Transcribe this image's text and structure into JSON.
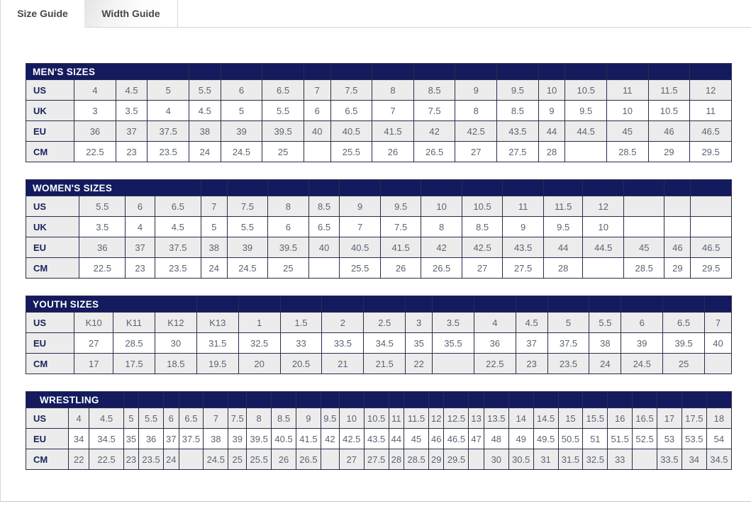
{
  "tabs": [
    {
      "label": "Size Guide",
      "active": true
    },
    {
      "label": "Width Guide",
      "active": false
    }
  ],
  "colors": {
    "header_navy": "#131b5e",
    "cell_border": "#2b2b4d",
    "value_text": "#5b6472",
    "label_text": "#16245c",
    "row_alt_background": "#ececec",
    "tab_text": "#474747"
  },
  "tables": [
    {
      "name": "mens-sizes-table",
      "title": "MEN'S SIZES",
      "title_colspan": 4,
      "rows": [
        {
          "label": "US",
          "values": [
            "4",
            "4.5",
            "5",
            "5.5",
            "6",
            "6.5",
            "7",
            "7.5",
            "8",
            "8.5",
            "9",
            "9.5",
            "10",
            "10.5",
            "11",
            "11.5",
            "12"
          ]
        },
        {
          "label": "UK",
          "values": [
            "3",
            "3.5",
            "4",
            "4.5",
            "5",
            "5.5",
            "6",
            "6.5",
            "7",
            "7.5",
            "8",
            "8.5",
            "9",
            "9.5",
            "10",
            "10.5",
            "11"
          ]
        },
        {
          "label": "EU",
          "values": [
            "36",
            "37",
            "37.5",
            "38",
            "39",
            "39.5",
            "40",
            "40.5",
            "41.5",
            "42",
            "42.5",
            "43.5",
            "44",
            "44.5",
            "45",
            "46",
            "46.5"
          ]
        },
        {
          "label": "CM",
          "values": [
            "22.5",
            "23",
            "23.5",
            "24",
            "24.5",
            "25",
            "",
            "25.5",
            "26",
            "26.5",
            "27",
            "27.5",
            "28",
            "",
            "28.5",
            "29",
            "29.5"
          ]
        }
      ]
    },
    {
      "name": "womens-sizes-table",
      "title": "WOMEN'S SIZES",
      "title_colspan": 4,
      "rows": [
        {
          "label": "US",
          "values": [
            "5.5",
            "6",
            "6.5",
            "7",
            "7.5",
            "8",
            "8.5",
            "9",
            "9.5",
            "10",
            "10.5",
            "11",
            "11.5",
            "12",
            "",
            "",
            ""
          ]
        },
        {
          "label": "UK",
          "values": [
            "3.5",
            "4",
            "4.5",
            "5",
            "5.5",
            "6",
            "6.5",
            "7",
            "7.5",
            "8",
            "8.5",
            "9",
            "9.5",
            "10",
            "",
            "",
            ""
          ]
        },
        {
          "label": "EU",
          "values": [
            "36",
            "37",
            "37.5",
            "38",
            "39",
            "39.5",
            "40",
            "40.5",
            "41.5",
            "42",
            "42.5",
            "43.5",
            "44",
            "44.5",
            "45",
            "46",
            "46.5"
          ]
        },
        {
          "label": "CM",
          "values": [
            "22.5",
            "23",
            "23.5",
            "24",
            "24.5",
            "25",
            "",
            "25.5",
            "26",
            "26.5",
            "27",
            "27.5",
            "28",
            "",
            "28.5",
            "29",
            "29.5"
          ]
        }
      ]
    },
    {
      "name": "youth-sizes-table",
      "title": "YOUTH SIZES",
      "title_colspan": 4,
      "rows": [
        {
          "label": "US",
          "values": [
            "K10",
            "K11",
            "K12",
            "K13",
            "1",
            "1.5",
            "2",
            "2.5",
            "3",
            "3.5",
            "4",
            "4.5",
            "5",
            "5.5",
            "6",
            "6.5",
            "7"
          ]
        },
        {
          "label": "EU",
          "values": [
            "27",
            "28.5",
            "30",
            "31.5",
            "32.5",
            "33",
            "33.5",
            "34.5",
            "35",
            "35.5",
            "36",
            "37",
            "37.5",
            "38",
            "39",
            "39.5",
            "40"
          ]
        },
        {
          "label": "CM",
          "values": [
            "17",
            "17.5",
            "18.5",
            "19.5",
            "20",
            "20.5",
            "21",
            "21.5",
            "22",
            "",
            "22.5",
            "23",
            "23.5",
            "24",
            "24.5",
            "25",
            ""
          ]
        }
      ]
    },
    {
      "name": "wrestling-table",
      "title": "WRESTLING",
      "title_colspan": 3,
      "rows": [
        {
          "label": "US",
          "values": [
            "4",
            "4.5",
            "5",
            "5.5",
            "6",
            "6.5",
            "7",
            "7.5",
            "8",
            "8.5",
            "9",
            "9.5",
            "10",
            "10.5",
            "11",
            "11.5",
            "12",
            "12.5",
            "13",
            "13.5",
            "14",
            "14.5",
            "15",
            "15.5",
            "16",
            "16.5",
            "17",
            "17.5",
            "18"
          ]
        },
        {
          "label": "EU",
          "values": [
            "34",
            "34.5",
            "35",
            "36",
            "37",
            "37.5",
            "38",
            "39",
            "39.5",
            "40.5",
            "41.5",
            "42",
            "42.5",
            "43.5",
            "44",
            "45",
            "46",
            "46.5",
            "47",
            "48",
            "49",
            "49.5",
            "50.5",
            "51",
            "51.5",
            "52.5",
            "53",
            "53.5",
            "54"
          ]
        },
        {
          "label": "CM",
          "values": [
            "22",
            "22.5",
            "23",
            "23.5",
            "24",
            "",
            "24.5",
            "25",
            "25.5",
            "26",
            "26.5",
            "",
            "27",
            "27.5",
            "28",
            "28.5",
            "29",
            "29.5",
            "",
            "30",
            "30.5",
            "31",
            "31.5",
            "32.5",
            "33",
            "",
            "33.5",
            "34",
            "34.5"
          ]
        }
      ]
    }
  ]
}
